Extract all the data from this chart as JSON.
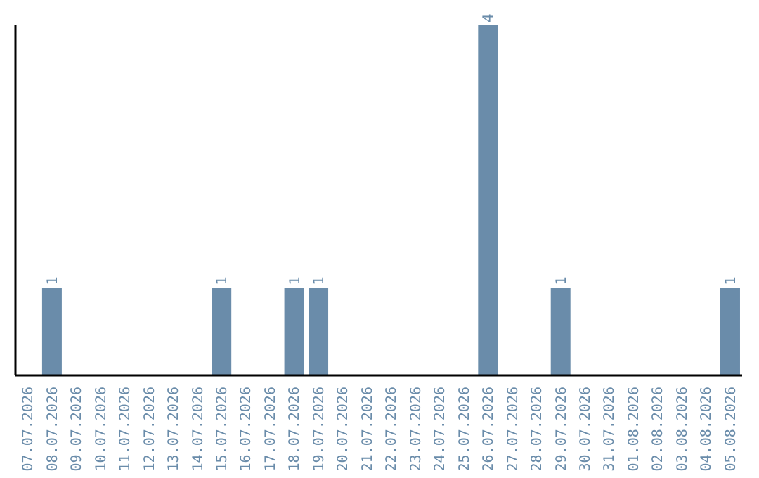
{
  "chart_data": {
    "type": "bar",
    "categories": [
      "07.07.2026",
      "08.07.2026",
      "09.07.2026",
      "10.07.2026",
      "11.07.2026",
      "12.07.2026",
      "13.07.2026",
      "14.07.2026",
      "15.07.2026",
      "16.07.2026",
      "17.07.2026",
      "18.07.2026",
      "19.07.2026",
      "20.07.2026",
      "21.07.2026",
      "22.07.2026",
      "23.07.2026",
      "24.07.2026",
      "25.07.2026",
      "26.07.2026",
      "27.07.2026",
      "28.07.2026",
      "29.07.2026",
      "30.07.2026",
      "31.07.2026",
      "01.08.2026",
      "02.08.2026",
      "03.08.2026",
      "04.08.2026",
      "05.08.2026"
    ],
    "values": [
      0,
      1,
      0,
      0,
      0,
      0,
      0,
      0,
      1,
      0,
      0,
      1,
      1,
      0,
      0,
      0,
      0,
      0,
      0,
      4,
      0,
      0,
      1,
      0,
      0,
      0,
      0,
      0,
      0,
      1
    ],
    "value_labels": [
      null,
      "1",
      null,
      null,
      null,
      null,
      null,
      null,
      "1",
      null,
      null,
      "1",
      "1",
      null,
      null,
      null,
      null,
      null,
      null,
      "4",
      null,
      null,
      "1",
      null,
      null,
      null,
      null,
      null,
      null,
      "1"
    ],
    "color": "#6a8caa",
    "tick_labels": "x",
    "grid": false,
    "legend": false
  }
}
